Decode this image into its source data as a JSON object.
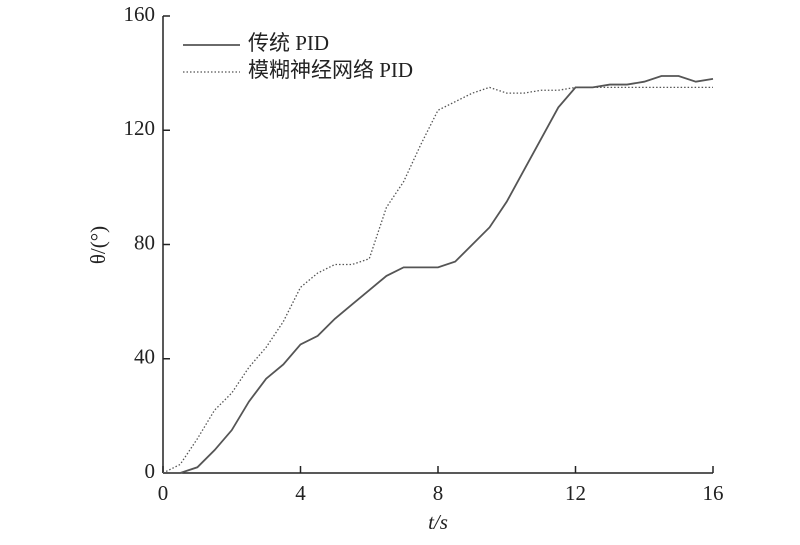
{
  "chart_data": {
    "type": "line",
    "xlabel": "t/s",
    "ylabel": "θ/(°)",
    "x": [
      0,
      0.5,
      1,
      1.5,
      2,
      2.5,
      3,
      3.5,
      4,
      4.5,
      5,
      5.5,
      6,
      6.5,
      7,
      7.5,
      8,
      8.5,
      9,
      9.5,
      10,
      10.5,
      11,
      11.5,
      12,
      12.5,
      13,
      13.5,
      14,
      14.5,
      15,
      15.5,
      16
    ],
    "series": [
      {
        "name": "传统 PID",
        "color": "#555555",
        "style": "solid",
        "values": [
          0,
          0,
          2,
          8,
          15,
          25,
          33,
          38,
          45,
          48,
          54,
          59,
          64,
          69,
          72,
          72,
          72,
          74,
          80,
          86,
          95,
          106,
          117,
          128,
          135,
          135,
          136,
          136,
          137,
          139,
          139,
          137,
          138
        ]
      },
      {
        "name": "模糊神经网络 PID",
        "color": "#555555",
        "style": "dotted",
        "values": [
          0,
          3,
          12,
          22,
          28,
          37,
          44,
          53,
          65,
          70,
          73,
          73,
          75,
          93,
          102,
          115,
          127,
          130,
          133,
          135,
          133,
          133,
          134,
          134,
          135,
          135,
          135,
          135,
          135,
          135,
          135,
          135,
          135
        ]
      }
    ],
    "xlim": [
      0,
      16
    ],
    "xticks": [
      0,
      4,
      8,
      12,
      16
    ],
    "ylim": [
      0,
      160
    ],
    "yticks": [
      0,
      40,
      80,
      120,
      160
    ],
    "legend": "upper left"
  }
}
